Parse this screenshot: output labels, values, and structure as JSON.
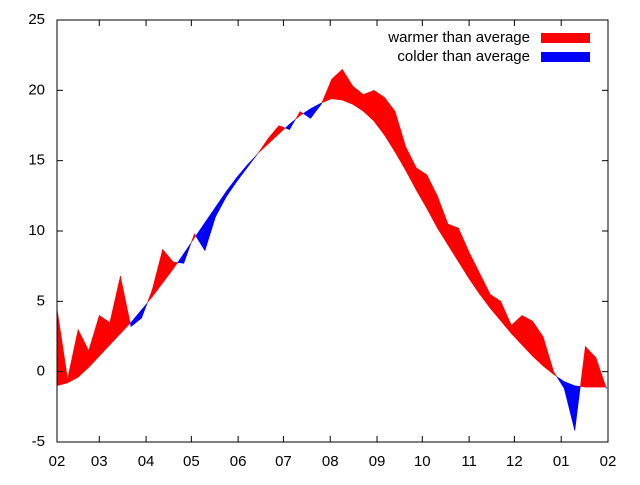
{
  "chart_data": {
    "type": "difference",
    "xlim": [
      0,
      365
    ],
    "xticks": [
      {
        "value": 0,
        "label": "02"
      },
      {
        "value": 28,
        "label": "03"
      },
      {
        "value": 59,
        "label": "04"
      },
      {
        "value": 89,
        "label": "05"
      },
      {
        "value": 120,
        "label": "06"
      },
      {
        "value": 150,
        "label": "07"
      },
      {
        "value": 181,
        "label": "08"
      },
      {
        "value": 212,
        "label": "09"
      },
      {
        "value": 242,
        "label": "10"
      },
      {
        "value": 273,
        "label": "11"
      },
      {
        "value": 303,
        "label": "12"
      },
      {
        "value": 334,
        "label": "01"
      },
      {
        "value": 365,
        "label": "02"
      }
    ],
    "ylim": [
      -5,
      25
    ],
    "yticks": [
      -5,
      0,
      5,
      10,
      15,
      20,
      25
    ],
    "x": [
      0,
      7,
      14,
      21,
      28,
      35,
      42,
      49,
      56,
      63,
      70,
      77,
      84,
      91,
      98,
      105,
      112,
      119,
      126,
      133,
      140,
      147,
      154,
      161,
      168,
      175,
      182,
      189,
      196,
      203,
      210,
      217,
      224,
      231,
      238,
      245,
      252,
      259,
      266,
      273,
      280,
      287,
      294,
      301,
      308,
      315,
      322,
      329,
      336,
      343,
      350,
      357,
      364
    ],
    "average": [
      -1.0,
      -0.8,
      -0.4,
      0.3,
      1.1,
      1.9,
      2.7,
      3.5,
      4.4,
      5.3,
      6.3,
      7.3,
      8.4,
      9.5,
      10.6,
      11.7,
      12.8,
      13.8,
      14.7,
      15.5,
      16.2,
      16.9,
      17.6,
      18.2,
      18.7,
      19.1,
      19.4,
      19.3,
      19.0,
      18.5,
      17.8,
      16.8,
      15.6,
      14.3,
      12.9,
      11.6,
      10.2,
      9.0,
      7.8,
      6.6,
      5.5,
      4.5,
      3.6,
      2.7,
      1.9,
      1.1,
      0.4,
      -0.2,
      -0.7,
      -1.0,
      -1.1,
      -1.1,
      -1.1
    ],
    "actual": [
      4.5,
      -0.5,
      3.0,
      1.5,
      4.0,
      3.5,
      6.8,
      3.2,
      3.8,
      5.8,
      8.7,
      7.8,
      7.7,
      9.8,
      8.6,
      11.0,
      12.4,
      13.5,
      14.5,
      15.5,
      16.6,
      17.5,
      17.2,
      18.5,
      18.0,
      19.0,
      20.8,
      21.5,
      20.3,
      19.7,
      20.0,
      19.5,
      18.5,
      16.0,
      14.5,
      14.0,
      12.5,
      10.5,
      10.2,
      8.5,
      7.0,
      5.5,
      5.0,
      3.3,
      4.0,
      3.6,
      2.5,
      0.0,
      -1.2,
      -4.2,
      1.8,
      1.0,
      -1.2
    ],
    "legend_position": "top right",
    "legend": [
      {
        "label": "warmer than average",
        "color": "#ff0000"
      },
      {
        "label": "colder than average",
        "color": "#0000ff"
      }
    ]
  }
}
